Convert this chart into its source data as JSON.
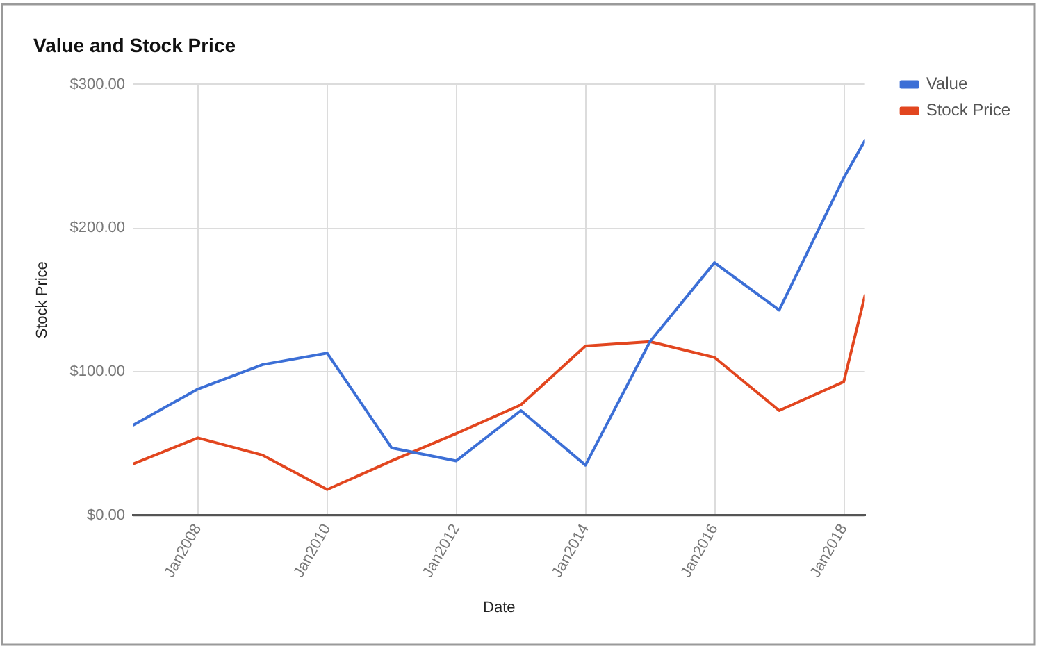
{
  "chart_data": {
    "type": "line",
    "title": "Value and Stock Price",
    "xlabel": "Date",
    "ylabel": "Stock Price",
    "x": [
      "2007-01",
      "2008-01",
      "2009-01",
      "2010-01",
      "2011-01",
      "2012-01",
      "2013-01",
      "2014-01",
      "2015-01",
      "2016-01",
      "2017-01",
      "2018-01",
      "2018-05"
    ],
    "series": [
      {
        "name": "Value",
        "color": "#3c6fd6",
        "values": [
          63,
          88,
          105,
          113,
          47,
          38,
          73,
          35,
          121,
          176,
          143,
          235,
          261
        ]
      },
      {
        "name": "Stock Price",
        "color": "#e2461f",
        "values": [
          36,
          54,
          42,
          18,
          38,
          57,
          77,
          118,
          121,
          110,
          73,
          93,
          153
        ]
      }
    ],
    "xlim": [
      "2007-01",
      "2018-05"
    ],
    "xticks": [
      {
        "value": "2008-01",
        "label": "Jan2008"
      },
      {
        "value": "2010-01",
        "label": "Jan2010"
      },
      {
        "value": "2012-01",
        "label": "Jan2012"
      },
      {
        "value": "2014-01",
        "label": "Jan2014"
      },
      {
        "value": "2016-01",
        "label": "Jan2016"
      },
      {
        "value": "2018-01",
        "label": "Jan2018"
      }
    ],
    "ylim": [
      0,
      300
    ],
    "yticks": [
      {
        "value": 0,
        "label": "$0.00"
      },
      {
        "value": 100,
        "label": "$100.00"
      },
      {
        "value": 200,
        "label": "$200.00"
      },
      {
        "value": 300,
        "label": "$300.00"
      }
    ],
    "grid": true,
    "legend": "top right"
  }
}
